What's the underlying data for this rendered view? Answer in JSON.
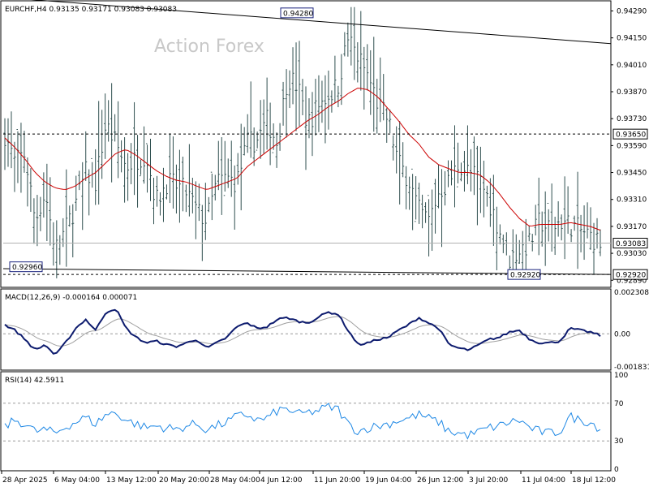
{
  "chart_data": [
    {
      "type": "bar",
      "name": "price",
      "header": "EURCHF,H4  0.93135 0.93171 0.93083 0.93083",
      "watermark": "Action Forex",
      "ylim": [
        0.9287,
        0.9433
      ],
      "y_ticks": [
        "0.94290",
        "0.94150",
        "0.94010",
        "0.93870",
        "0.93730",
        "0.93590",
        "0.93450",
        "0.93310",
        "0.93170",
        "0.93030",
        "0.92890"
      ],
      "y_tick_values": [
        0.9429,
        0.9415,
        0.9401,
        0.9387,
        0.9373,
        0.9359,
        0.9345,
        0.9331,
        0.9317,
        0.9303,
        0.9289
      ],
      "x_labels": [
        "28 Apr 2025",
        "6 May 04:00",
        "13 May 12:00",
        "20 May 20:00",
        "28 May 04:00",
        "4 Jun 12:00",
        "11 Jun 20:00",
        "19 Jun 04:00",
        "26 Jun 12:00",
        "3 Jul 20:00",
        "11 Jul 04:00",
        "18 Jul 12:00"
      ],
      "current_price": {
        "label": "0.93083",
        "value": 0.93083
      },
      "level_lines": [
        {
          "label": "0.93650",
          "value": 0.9365,
          "style": "dashed"
        },
        {
          "label": "0.92920",
          "value": 0.9292,
          "style": "dashed"
        }
      ],
      "annotations": [
        {
          "label": "0.94280",
          "value": 0.9428
        },
        {
          "label": "0.92960",
          "value": 0.9296
        },
        {
          "label": "0.92920",
          "value": 0.9292
        }
      ],
      "trendlines": [
        {
          "name": "upper",
          "from": 0.9436,
          "to": 0.9412
        },
        {
          "name": "lower",
          "from": 0.9295,
          "to": 0.9292
        }
      ],
      "close_profile": [
        0.9365,
        0.935,
        0.9355,
        0.932,
        0.9335,
        0.9305,
        0.9315,
        0.9328,
        0.9345,
        0.934,
        0.937,
        0.936,
        0.9348,
        0.9352,
        0.9355,
        0.933,
        0.934,
        0.9338,
        0.9335,
        0.9325,
        0.932,
        0.934,
        0.9342,
        0.934,
        0.936,
        0.9362,
        0.9372,
        0.936,
        0.9395,
        0.939,
        0.937,
        0.938,
        0.9385,
        0.939,
        0.9415,
        0.9405,
        0.9395,
        0.938,
        0.9372,
        0.935,
        0.9342,
        0.9325,
        0.932,
        0.9335,
        0.934,
        0.935,
        0.9345,
        0.9342,
        0.933,
        0.9315,
        0.93,
        0.9305,
        0.9308,
        0.932,
        0.9315,
        0.932,
        0.9318,
        0.9315,
        0.9312,
        0.9308
      ],
      "ma_profile": [
        0.9363,
        0.9358,
        0.9352,
        0.9345,
        0.934,
        0.9337,
        0.9336,
        0.9338,
        0.9342,
        0.9345,
        0.935,
        0.9355,
        0.9357,
        0.9354,
        0.935,
        0.9346,
        0.9343,
        0.9341,
        0.934,
        0.9338,
        0.9336,
        0.9338,
        0.934,
        0.9342,
        0.9348,
        0.9352,
        0.9356,
        0.936,
        0.9364,
        0.9368,
        0.9372,
        0.9375,
        0.9379,
        0.9382,
        0.9386,
        0.9389,
        0.9388,
        0.9384,
        0.9378,
        0.9372,
        0.9365,
        0.936,
        0.9353,
        0.9349,
        0.9347,
        0.9345,
        0.9345,
        0.9344,
        0.934,
        0.9334,
        0.9327,
        0.9321,
        0.9317,
        0.9318,
        0.9318,
        0.9318,
        0.9319,
        0.9318,
        0.9317,
        0.9315
      ]
    },
    {
      "type": "line",
      "name": "macd",
      "header": "MACD(12,26,9) -0.000164 0.000071",
      "ylim": [
        -0.001831,
        0.002308
      ],
      "y_ticks": [
        "0.002308",
        "0.00",
        "-0.001831"
      ],
      "y_tick_values": [
        0.002308,
        0.0,
        -0.001831
      ],
      "current_label": "0.00",
      "macd_profile": [
        0.0005,
        0.0002,
        -0.0003,
        -0.0009,
        -0.0006,
        -0.0012,
        -0.0005,
        0.0003,
        0.0008,
        0.0002,
        0.0012,
        0.0014,
        0.0003,
        -0.0002,
        -0.0005,
        -0.0004,
        -0.0006,
        -0.0007,
        -0.0005,
        -0.0003,
        -0.0008,
        -0.0005,
        -0.0002,
        0.0004,
        0.0006,
        0.0003,
        0.0004,
        0.0008,
        0.0009,
        0.0007,
        0.0006,
        0.0009,
        0.0012,
        0.0011,
        0.0002,
        -0.0006,
        -0.0005,
        -0.0003,
        -0.0002,
        0.0002,
        0.0005,
        0.0009,
        0.0006,
        0.0003,
        -0.0006,
        -0.0008,
        -0.0009,
        -0.0006,
        -0.0003,
        -0.0002,
        0.0001,
        0.0002,
        -0.0003,
        -0.0005,
        -0.0005,
        -0.0004,
        0.0003,
        0.0002,
        0.0001,
        -0.0001
      ]
    },
    {
      "type": "line",
      "name": "rsi",
      "header": "RSI(14) 42.5911",
      "ylim": [
        0,
        100
      ],
      "y_ticks": [
        "100",
        "70",
        "30",
        "0"
      ],
      "y_tick_values": [
        100,
        70,
        30,
        0
      ],
      "rsi_profile": [
        45,
        52,
        48,
        40,
        42,
        38,
        45,
        50,
        55,
        48,
        58,
        60,
        52,
        48,
        44,
        46,
        44,
        42,
        46,
        48,
        42,
        46,
        50,
        56,
        58,
        52,
        54,
        62,
        64,
        58,
        60,
        62,
        66,
        64,
        48,
        40,
        44,
        46,
        48,
        52,
        54,
        58,
        54,
        50,
        40,
        38,
        36,
        40,
        44,
        46,
        50,
        52,
        44,
        40,
        38,
        40,
        56,
        52,
        50,
        43
      ]
    }
  ]
}
